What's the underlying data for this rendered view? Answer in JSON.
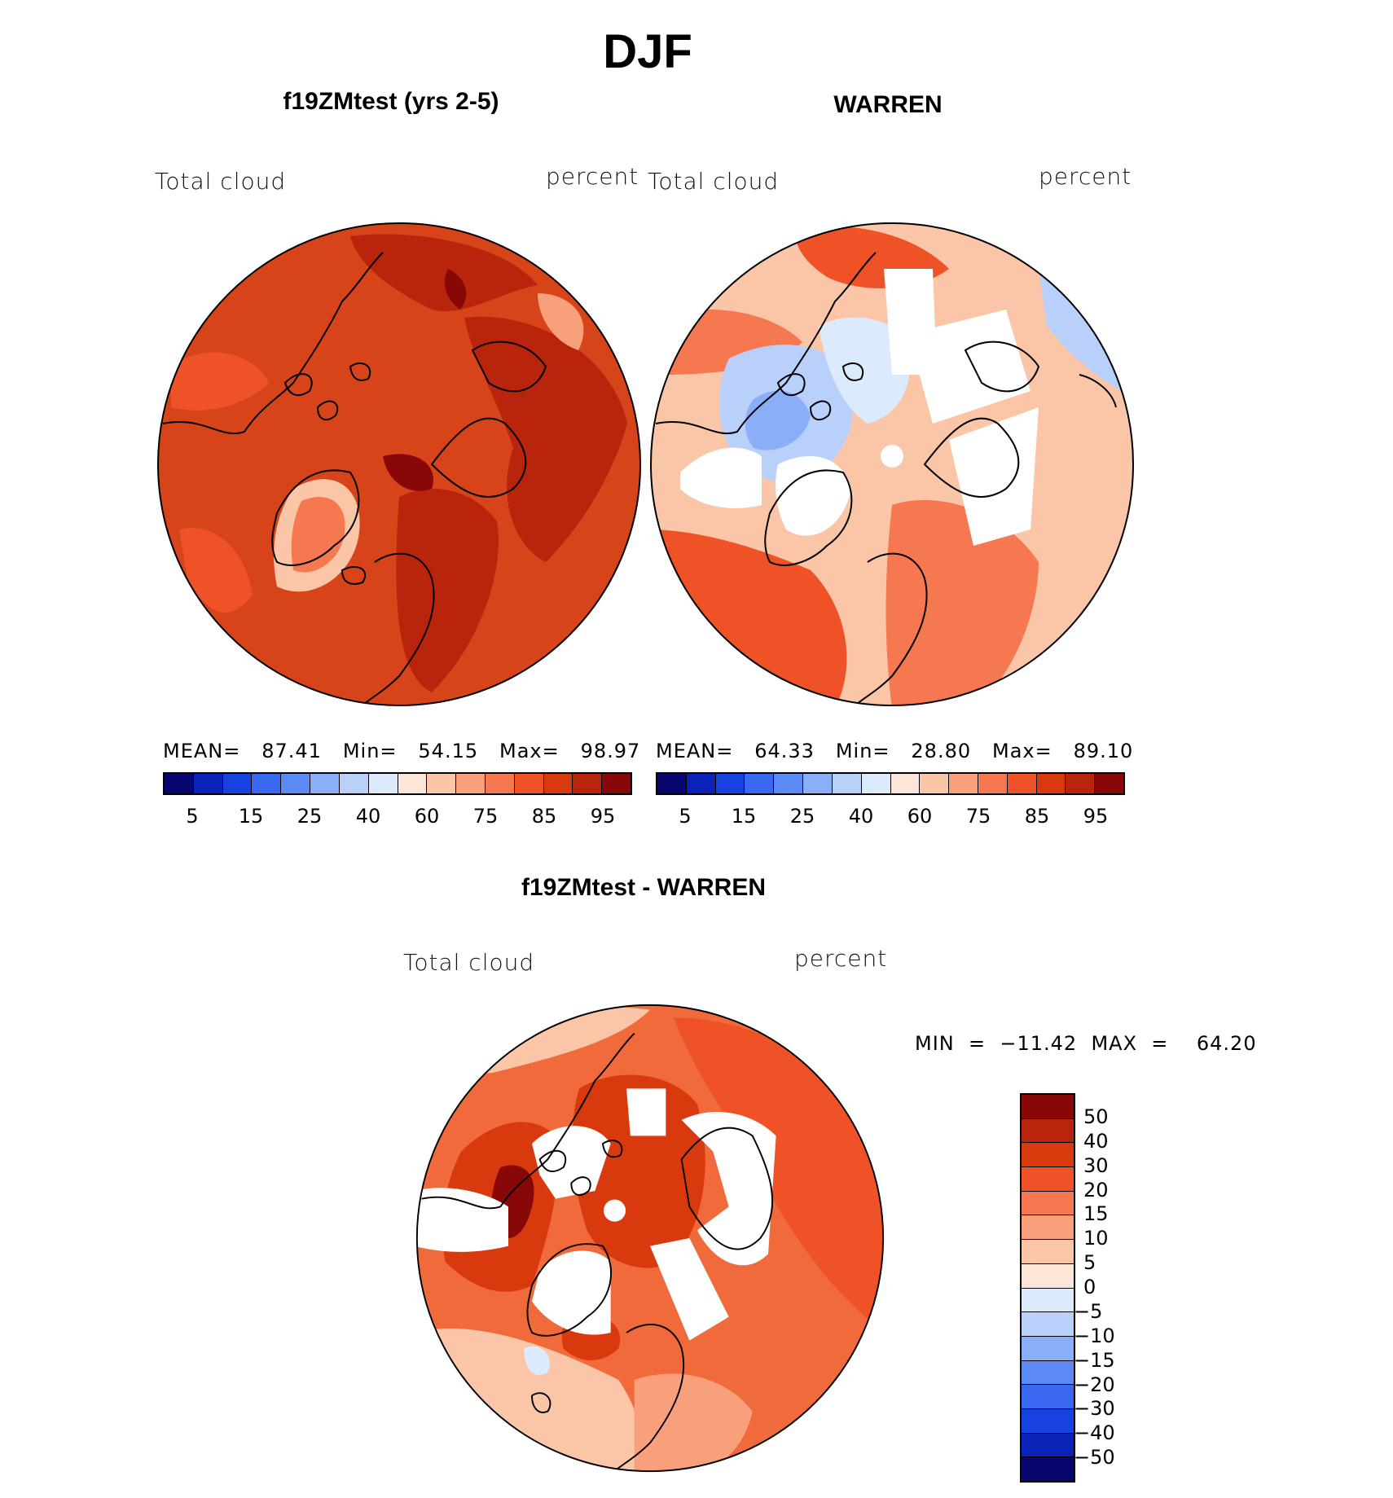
{
  "title": "DJF",
  "panels": {
    "model": {
      "title": "f19ZMtest (yrs 2-5)",
      "left_label": "Total cloud",
      "right_label": "percent",
      "stats": "MEAN=   87.41   Min=   54.15   Max=   98.97",
      "bg_color": "#d8441a"
    },
    "obs": {
      "title": "WARREN",
      "left_label": "Total cloud",
      "right_label": "percent",
      "stats": "MEAN=   64.33   Min=   28.80   Max=   89.10",
      "bg_color": "#fbc6a8"
    },
    "diff": {
      "title": "f19ZMtest - WARREN",
      "left_label": "Total cloud",
      "right_label": "percent",
      "minmax": "MIN  =  −11.42  MAX  =    64.20",
      "bg_color": "#f06a3c"
    }
  },
  "abs_colorbar": {
    "colors": [
      "#06066e",
      "#0a22b8",
      "#1842e0",
      "#3a68f0",
      "#5b8af5",
      "#8aaef8",
      "#b8d0fa",
      "#dceafd",
      "#fde6d8",
      "#fbc6a8",
      "#f8a07c",
      "#f57850",
      "#ee5226",
      "#d83a0e",
      "#b8240c",
      "#880808"
    ],
    "labels": [
      "5",
      "15",
      "25",
      "40",
      "60",
      "75",
      "85",
      "95"
    ]
  },
  "diff_colorbar": {
    "colors_top_to_bottom": [
      "#880808",
      "#b8240c",
      "#d83a0e",
      "#ee5226",
      "#f57850",
      "#f8a07c",
      "#fbc6a8",
      "#fde6d8",
      "#dceafd",
      "#b8d0fa",
      "#8aaef8",
      "#5b8af5",
      "#3a68f0",
      "#1842e0",
      "#0a22b8",
      "#06066e"
    ],
    "labels": [
      "50",
      "40",
      "30",
      "20",
      "15",
      "10",
      "5",
      "0",
      "−5",
      "−10",
      "−15",
      "−20",
      "−30",
      "−40",
      "−50"
    ]
  }
}
